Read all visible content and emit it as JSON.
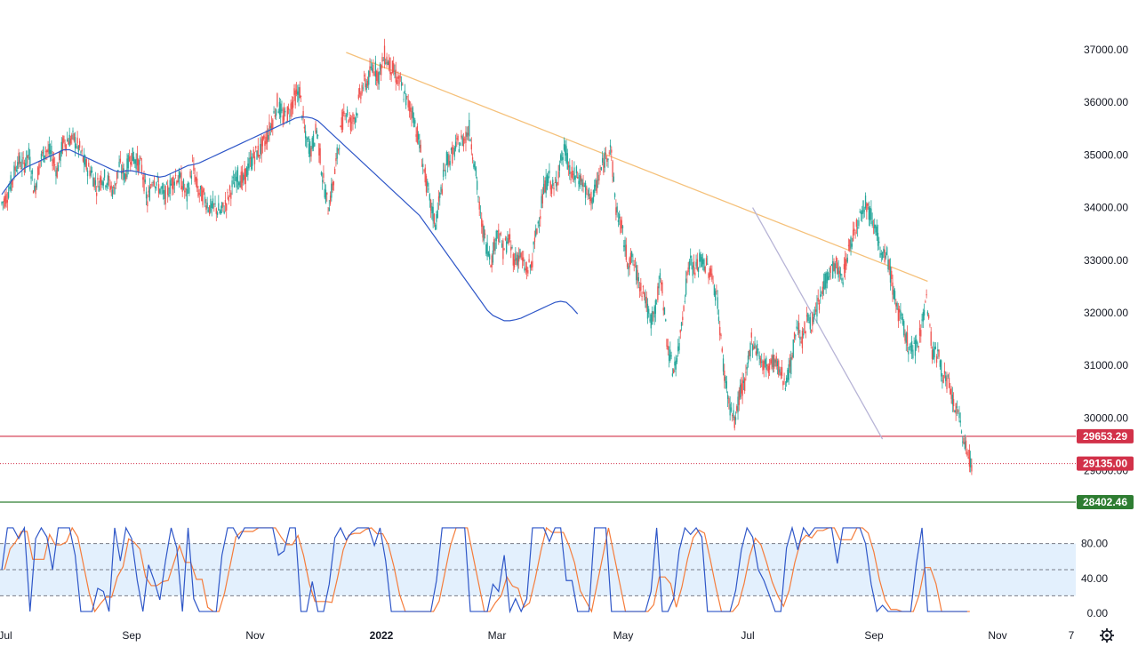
{
  "chart_data": {
    "type": "candlestick",
    "instrument": "",
    "price_axis": {
      "ylim": [
        28800,
        37000
      ],
      "ticks": [
        "37000.00",
        "36000.00",
        "35000.00",
        "34000.00",
        "33000.00",
        "32000.00",
        "31000.00",
        "30000.00",
        "29000.00"
      ],
      "tick_values": [
        37000,
        36000,
        35000,
        34000,
        33000,
        32000,
        31000,
        30000,
        29000
      ]
    },
    "time_axis": {
      "labels": [
        "Jul",
        "Sep",
        "Nov",
        "2022",
        "Mar",
        "May",
        "Jul",
        "Sep",
        "Nov",
        "7"
      ],
      "bold_label": "2022"
    },
    "weekly_closes": [
      34200,
      34500,
      34900,
      34800,
      35000,
      34300,
      34900,
      35100,
      35000,
      34700,
      35200,
      35300,
      35300,
      35100,
      34800,
      34700,
      34400,
      34600,
      34500,
      34300,
      34800,
      34600,
      35000,
      34900,
      34750,
      34100,
      34600,
      34400,
      34200,
      34400,
      34600,
      34500,
      34200,
      34800,
      34300,
      34200,
      34000,
      34000,
      33900,
      34100,
      34400,
      34600,
      34500,
      34800,
      35000,
      35100,
      35300,
      35600,
      36000,
      35700,
      35800,
      36100,
      36200,
      35300,
      35100,
      35500,
      34600,
      34000,
      34500,
      35300,
      35900,
      35600,
      35800,
      36300,
      36400,
      36700,
      36500,
      36900,
      36700,
      36500,
      36300,
      36000,
      35800,
      35300,
      34700,
      34100,
      33700,
      34300,
      34900,
      35000,
      35200,
      35300,
      35500,
      34800,
      33800,
      33300,
      33000,
      33600,
      33200,
      33400,
      33000,
      33100,
      32800,
      32900,
      33600,
      34200,
      34600,
      34300,
      34800,
      35100,
      34600,
      34600,
      34500,
      34200,
      34200,
      34600,
      34900,
      35200,
      34000,
      33600,
      33000,
      33000,
      32600,
      32400,
      31800,
      32100,
      32700,
      31500,
      30900,
      31200,
      32200,
      33000,
      32800,
      33000,
      32900,
      32700,
      32200,
      31000,
      30300,
      29900,
      30500,
      30700,
      31500,
      31300,
      31000,
      31000,
      31100,
      30900,
      30700,
      31000,
      31800,
      31500,
      31900,
      31800,
      32200,
      32600,
      32800,
      32900,
      32600,
      33100,
      33500,
      33800,
      34100,
      33900,
      33700,
      33000,
      33100,
      32500,
      32000,
      31700,
      31300,
      31300,
      31700,
      32300,
      31300,
      31200,
      30800,
      30600,
      30200,
      29900,
      29400,
      29135
    ],
    "series": [
      {
        "type": "line",
        "color": "#2f57c8",
        "values": [
          34250,
          34400,
          34550,
          34650,
          34750,
          34800,
          34850,
          34900,
          34950,
          35000,
          35050,
          35100,
          35100,
          35050,
          35000,
          34950,
          34900,
          34850,
          34800,
          34750,
          34700,
          34680,
          34700,
          34700,
          34680,
          34650,
          34620,
          34600,
          34580,
          34600,
          34650,
          34700,
          34750,
          34800,
          34820,
          34850,
          34900,
          34950,
          35000,
          35050,
          35100,
          35150,
          35200,
          35250,
          35300,
          35350,
          35400,
          35450,
          35500,
          35550,
          35600,
          35650,
          35700,
          35720,
          35720,
          35700,
          35650,
          35550,
          35450,
          35350,
          35250,
          35150,
          35050,
          34950,
          34850,
          34750,
          34650,
          34550,
          34450,
          34350,
          34250,
          34150,
          34050,
          33950,
          33850,
          33700,
          33550,
          33400,
          33250,
          33100,
          32950,
          32800,
          32650,
          32500,
          32350,
          32200,
          32050,
          31950,
          31900,
          31850,
          31850,
          31870,
          31900,
          31950,
          32000,
          32050,
          32100,
          32150,
          32200,
          32220,
          32200,
          32100,
          31980
        ],
        "start_week": 90
      }
    ],
    "stochastic": {
      "ticks": [
        "80.00",
        "40.00",
        "0.00"
      ],
      "tick_values": [
        80,
        40,
        0
      ],
      "levels": [
        20,
        50,
        80
      ],
      "k_color": "#2f57c8",
      "d_color": "#f57c3b"
    },
    "trendlines": [
      {
        "color": "#f5c17b",
        "from": {
          "week": 61,
          "price": 36950
        },
        "to": {
          "week": 164,
          "price": 32600
        }
      },
      {
        "color": "#b7b4d6",
        "from": {
          "week": 133,
          "price": 34000
        },
        "to": {
          "week": 156,
          "price": 29600
        }
      }
    ],
    "horizontal_levels": [
      {
        "price": 29653.29,
        "label": "29653.29",
        "color": "#d23149",
        "style": "solid"
      },
      {
        "price": 29135.0,
        "label": "29135.00",
        "color": "#d23149",
        "style": "dotted"
      },
      {
        "price": 28402.46,
        "label": "28402.46",
        "color": "#2e7d32",
        "style": "solid"
      }
    ],
    "colors": {
      "up": "#26a69a",
      "down": "#ef5350",
      "stoch_band": "#e3f0fd"
    }
  }
}
